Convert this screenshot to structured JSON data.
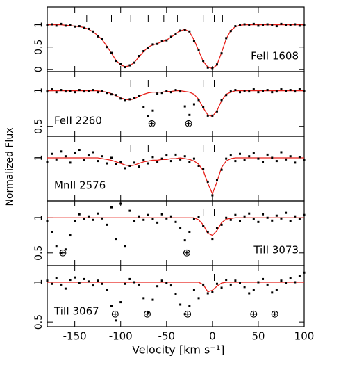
{
  "axes": {
    "xlabel": "Velocity [km s⁻¹]",
    "ylabel": "Normalized Flux",
    "xlim": [
      -180,
      100
    ],
    "xticks": [
      -150,
      -100,
      -50,
      0,
      50,
      100
    ]
  },
  "chart_data": [
    {
      "type": "spectrum",
      "label": "FeII 1608",
      "label_pos": "right",
      "ylim": [
        -0.05,
        1.4
      ],
      "yticks": [
        0,
        0.5,
        1
      ],
      "x": [
        -180,
        -175,
        -170,
        -165,
        -160,
        -155,
        -150,
        -145,
        -140,
        -135,
        -130,
        -125,
        -120,
        -115,
        -110,
        -105,
        -100,
        -95,
        -90,
        -85,
        -80,
        -75,
        -70,
        -65,
        -60,
        -55,
        -50,
        -45,
        -40,
        -35,
        -30,
        -25,
        -20,
        -15,
        -10,
        -5,
        0,
        5,
        10,
        15,
        20,
        25,
        30,
        35,
        40,
        45,
        50,
        55,
        60,
        65,
        70,
        75,
        80,
        85,
        90,
        95,
        100
      ],
      "flux": [
        0.99,
        1.01,
        0.98,
        1.02,
        0.98,
        0.99,
        0.96,
        0.97,
        0.93,
        0.91,
        0.85,
        0.74,
        0.68,
        0.5,
        0.37,
        0.19,
        0.12,
        0.05,
        0.09,
        0.15,
        0.3,
        0.41,
        0.48,
        0.56,
        0.57,
        0.63,
        0.65,
        0.73,
        0.79,
        0.87,
        0.89,
        0.85,
        0.64,
        0.43,
        0.19,
        0.04,
        0.03,
        0.11,
        0.36,
        0.7,
        0.86,
        0.97,
        1.0,
        1.01,
        0.99,
        1.02,
        0.98,
        1.0,
        1.01,
        0.99,
        0.97,
        1.02,
        1.0,
        0.99,
        1.01,
        0.98,
        1.0
      ],
      "fit": [
        1,
        1,
        1,
        1,
        0.99,
        0.98,
        0.97,
        0.96,
        0.94,
        0.9,
        0.84,
        0.76,
        0.66,
        0.52,
        0.36,
        0.2,
        0.1,
        0.06,
        0.08,
        0.16,
        0.28,
        0.4,
        0.5,
        0.55,
        0.58,
        0.62,
        0.66,
        0.72,
        0.8,
        0.86,
        0.9,
        0.84,
        0.66,
        0.42,
        0.18,
        0.05,
        0.02,
        0.1,
        0.38,
        0.68,
        0.87,
        0.96,
        0.99,
        1,
        1,
        1,
        1,
        1,
        1,
        1,
        1,
        1,
        1,
        1,
        1,
        1,
        1
      ],
      "components": [
        -137,
        -110,
        -89,
        -70,
        -53,
        -38,
        -10,
        2,
        11
      ],
      "telluric": []
    },
    {
      "type": "spectrum",
      "label": "FeII 2260",
      "label_pos": "left",
      "ylim": [
        0.36,
        1.27
      ],
      "yticks": [
        0.5,
        1
      ],
      "x": [
        -180,
        -175,
        -170,
        -165,
        -160,
        -155,
        -150,
        -145,
        -140,
        -135,
        -130,
        -125,
        -120,
        -115,
        -110,
        -105,
        -100,
        -95,
        -90,
        -85,
        -80,
        -75,
        -70,
        -65,
        -60,
        -55,
        -50,
        -45,
        -40,
        -35,
        -30,
        -25,
        -20,
        -15,
        -10,
        -5,
        0,
        5,
        10,
        15,
        20,
        25,
        30,
        35,
        40,
        45,
        50,
        55,
        60,
        65,
        70,
        75,
        80,
        85,
        90,
        95,
        100
      ],
      "flux": [
        0.99,
        1.02,
        0.98,
        1.01,
        0.99,
        1.0,
        0.98,
        1.01,
        0.99,
        1.0,
        1.01,
        0.98,
        1.0,
        0.97,
        0.95,
        0.94,
        0.89,
        0.87,
        0.88,
        0.9,
        0.93,
        0.77,
        0.64,
        0.72,
        0.96,
        0.97,
        1.0,
        0.98,
        1.01,
        0.99,
        0.78,
        0.66,
        0.81,
        0.87,
        0.77,
        0.65,
        0.65,
        0.71,
        0.87,
        0.94,
        0.99,
        1.01,
        0.98,
        1.0,
        0.99,
        1.02,
        0.98,
        1.0,
        1.01,
        0.98,
        0.99,
        1.02,
        1.0,
        1.01,
        0.99,
        1.03,
        1.0
      ],
      "fit": [
        1,
        1,
        1,
        1,
        1,
        1,
        1,
        1,
        1,
        1,
        1,
        1,
        0.99,
        0.98,
        0.96,
        0.93,
        0.9,
        0.88,
        0.87,
        0.89,
        0.92,
        0.95,
        0.97,
        0.98,
        0.98,
        0.98,
        0.99,
        0.99,
        1,
        1,
        0.99,
        0.98,
        0.95,
        0.88,
        0.76,
        0.66,
        0.64,
        0.72,
        0.86,
        0.95,
        0.98,
        1,
        1,
        1,
        1,
        1,
        1,
        1,
        1,
        1,
        1,
        1,
        1,
        1,
        1,
        1,
        1
      ],
      "components": [
        -89,
        -70,
        -10,
        2
      ],
      "telluric": [
        {
          "v": -66,
          "label": "⊕"
        },
        {
          "v": -26,
          "label": "⊕"
        }
      ]
    },
    {
      "type": "spectrum",
      "label": "MnII 2576",
      "label_pos": "left",
      "ylim": [
        0.46,
        1.27
      ],
      "yticks": [
        1
      ],
      "x": [
        -180,
        -175,
        -170,
        -165,
        -160,
        -155,
        -150,
        -145,
        -140,
        -135,
        -130,
        -125,
        -120,
        -115,
        -110,
        -105,
        -100,
        -95,
        -90,
        -85,
        -80,
        -75,
        -70,
        -65,
        -60,
        -55,
        -50,
        -45,
        -40,
        -35,
        -30,
        -25,
        -20,
        -15,
        -10,
        -5,
        0,
        5,
        10,
        15,
        20,
        25,
        30,
        35,
        40,
        45,
        50,
        55,
        60,
        65,
        70,
        75,
        80,
        85,
        90,
        95,
        100
      ],
      "flux": [
        0.95,
        1.05,
        0.98,
        1.08,
        1.02,
        0.94,
        1.06,
        1.1,
        0.97,
        1.03,
        1.07,
        0.96,
        1.02,
        0.93,
        1.0,
        0.92,
        0.95,
        0.87,
        0.9,
        0.94,
        0.89,
        0.97,
        0.93,
        1.01,
        0.95,
        0.99,
        1.03,
        0.96,
        1.04,
        0.98,
        1.02,
        0.95,
        0.99,
        0.9,
        0.86,
        0.7,
        0.53,
        0.72,
        0.85,
        0.99,
        1.03,
        0.96,
        1.05,
        0.97,
        1.02,
        1.06,
        0.99,
        0.95,
        1.04,
        1.0,
        0.96,
        1.07,
        0.98,
        1.02,
        0.94,
        1.01,
        0.97
      ],
      "fit": [
        1,
        1,
        1,
        1,
        1,
        1,
        1,
        1,
        1,
        1,
        1,
        1,
        0.99,
        0.98,
        0.97,
        0.95,
        0.93,
        0.91,
        0.9,
        0.91,
        0.93,
        0.95,
        0.96,
        0.97,
        0.97,
        0.98,
        0.98,
        0.99,
        0.99,
        1,
        0.99,
        0.98,
        0.96,
        0.92,
        0.84,
        0.68,
        0.55,
        0.7,
        0.88,
        0.96,
        0.99,
        1,
        1,
        1,
        1,
        1,
        1,
        1,
        1,
        1,
        1,
        1,
        1,
        1,
        1,
        1,
        1
      ],
      "components": [
        -89,
        -70,
        -10,
        2
      ],
      "telluric": []
    },
    {
      "type": "spectrum",
      "label": "TiII 3073",
      "label_pos": "right",
      "ylim": [
        0.32,
        1.24
      ],
      "yticks": [
        0.5,
        1
      ],
      "x": [
        -180,
        -175,
        -170,
        -165,
        -160,
        -155,
        -150,
        -145,
        -140,
        -135,
        -130,
        -125,
        -120,
        -115,
        -110,
        -105,
        -100,
        -95,
        -90,
        -85,
        -80,
        -75,
        -70,
        -65,
        -60,
        -55,
        -50,
        -45,
        -40,
        -35,
        -30,
        -25,
        -20,
        -15,
        -10,
        -5,
        0,
        5,
        10,
        15,
        20,
        25,
        30,
        35,
        40,
        45,
        50,
        55,
        60,
        65,
        70,
        75,
        80,
        85,
        90,
        95,
        100
      ],
      "flux": [
        0.95,
        0.8,
        0.6,
        0.5,
        0.55,
        0.75,
        0.95,
        1.05,
        0.98,
        1.02,
        0.97,
        1.06,
        0.99,
        0.9,
        1.15,
        0.7,
        1.2,
        0.6,
        1.1,
        0.95,
        1.02,
        0.97,
        1.04,
        0.98,
        0.93,
        1.05,
        0.99,
        1.02,
        0.94,
        0.85,
        0.68,
        0.8,
        0.98,
        1.01,
        0.88,
        0.8,
        0.7,
        0.85,
        0.9,
        1.0,
        0.97,
        1.04,
        0.95,
        1.02,
        1.06,
        0.98,
        0.94,
        1.05,
        1.0,
        0.96,
        1.03,
        0.99,
        1.07,
        0.95,
        1.02,
        0.98,
        1.04
      ],
      "fit": [
        1,
        1,
        1,
        1,
        1,
        1,
        1,
        1,
        1,
        1,
        1,
        1,
        1,
        1,
        1,
        1,
        1,
        1,
        1,
        1,
        1,
        1,
        1,
        1,
        1,
        1,
        1,
        1,
        1,
        1,
        1,
        1,
        1,
        0.97,
        0.9,
        0.78,
        0.75,
        0.82,
        0.93,
        0.98,
        0.99,
        1,
        1,
        1,
        1,
        1,
        1,
        1,
        1,
        1,
        1,
        1,
        1,
        1,
        1,
        1,
        1
      ],
      "components": [
        -10,
        2
      ],
      "telluric": [
        {
          "v": -163,
          "label": "⊕"
        },
        {
          "v": -28,
          "label": "⊕"
        }
      ]
    },
    {
      "type": "spectrum",
      "label": "TiII 3067",
      "label_pos": "left",
      "ylim": [
        0.44,
        1.21
      ],
      "yticks": [
        0.5,
        1
      ],
      "x": [
        -180,
        -175,
        -170,
        -165,
        -160,
        -155,
        -150,
        -145,
        -140,
        -135,
        -130,
        -125,
        -120,
        -115,
        -110,
        -105,
        -100,
        -95,
        -90,
        -85,
        -80,
        -75,
        -70,
        -65,
        -60,
        -55,
        -50,
        -45,
        -40,
        -35,
        -30,
        -25,
        -20,
        -15,
        -10,
        -5,
        0,
        5,
        10,
        15,
        20,
        25,
        30,
        35,
        40,
        45,
        50,
        55,
        60,
        65,
        70,
        75,
        80,
        85,
        90,
        95,
        100
      ],
      "flux": [
        1.02,
        0.98,
        1.05,
        0.97,
        0.92,
        1.03,
        1.06,
        0.99,
        1.04,
        1.01,
        0.96,
        1.02,
        0.98,
        0.9,
        0.7,
        0.52,
        0.75,
        0.98,
        1.04,
        1.0,
        0.97,
        0.8,
        0.62,
        0.78,
        0.95,
        1.02,
        0.99,
        0.96,
        0.85,
        0.72,
        0.6,
        0.7,
        0.9,
        0.8,
        0.97,
        0.86,
        0.88,
        0.98,
        0.93,
        1.03,
        0.97,
        1.02,
        0.99,
        0.94,
        0.86,
        0.9,
        1.0,
        1.04,
        0.97,
        0.87,
        0.9,
        1.02,
        0.99,
        1.05,
        1.0,
        1.08,
        1.12
      ],
      "fit": [
        1,
        1,
        1,
        1,
        1,
        1,
        1,
        1,
        1,
        1,
        1,
        1,
        1,
        1,
        1,
        1,
        1,
        1,
        1,
        1,
        1,
        1,
        1,
        1,
        1,
        1,
        1,
        1,
        1,
        1,
        1,
        1,
        1,
        1,
        0.97,
        0.88,
        0.9,
        0.95,
        0.99,
        1,
        1,
        1,
        1,
        1,
        1,
        1,
        1,
        1,
        1,
        1,
        1,
        1,
        1,
        1,
        1,
        1,
        1
      ],
      "components": [
        2
      ],
      "telluric": [
        {
          "v": -106,
          "label": "⊕"
        },
        {
          "v": -71,
          "label": "⊕"
        },
        {
          "v": -27,
          "label": "⊕"
        },
        {
          "v": 45,
          "label": "⊕"
        },
        {
          "v": 68,
          "label": "⊕"
        }
      ]
    }
  ],
  "fit_color": "#e8201a",
  "flux_color": "#000000"
}
